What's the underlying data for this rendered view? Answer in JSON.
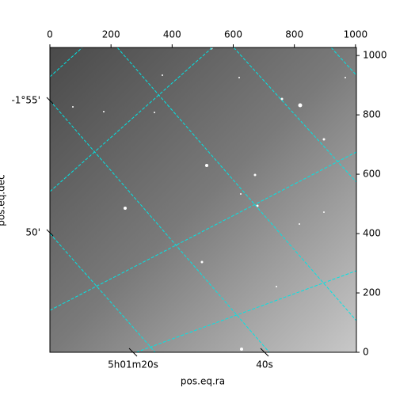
{
  "chart_data": {
    "type": "image",
    "xlabel": "pos.eq.ra",
    "ylabel": "pos.eq.dec",
    "xlim": [
      0,
      1003
    ],
    "ylim": [
      0,
      1027
    ],
    "xticks": [
      0,
      200,
      400,
      600,
      800,
      1000
    ],
    "yticks": [
      0,
      200,
      400,
      600,
      800,
      1000
    ],
    "ra_ticks": [
      {
        "value": 75.33333,
        "label": "5h01m20s"
      },
      {
        "value": 75.41667,
        "label": "40s"
      }
    ],
    "dec_ticks": [
      {
        "value": -1.91667,
        "label": "-1°55'"
      },
      {
        "value": -1.83333,
        "label": "50'"
      }
    ]
  }
}
